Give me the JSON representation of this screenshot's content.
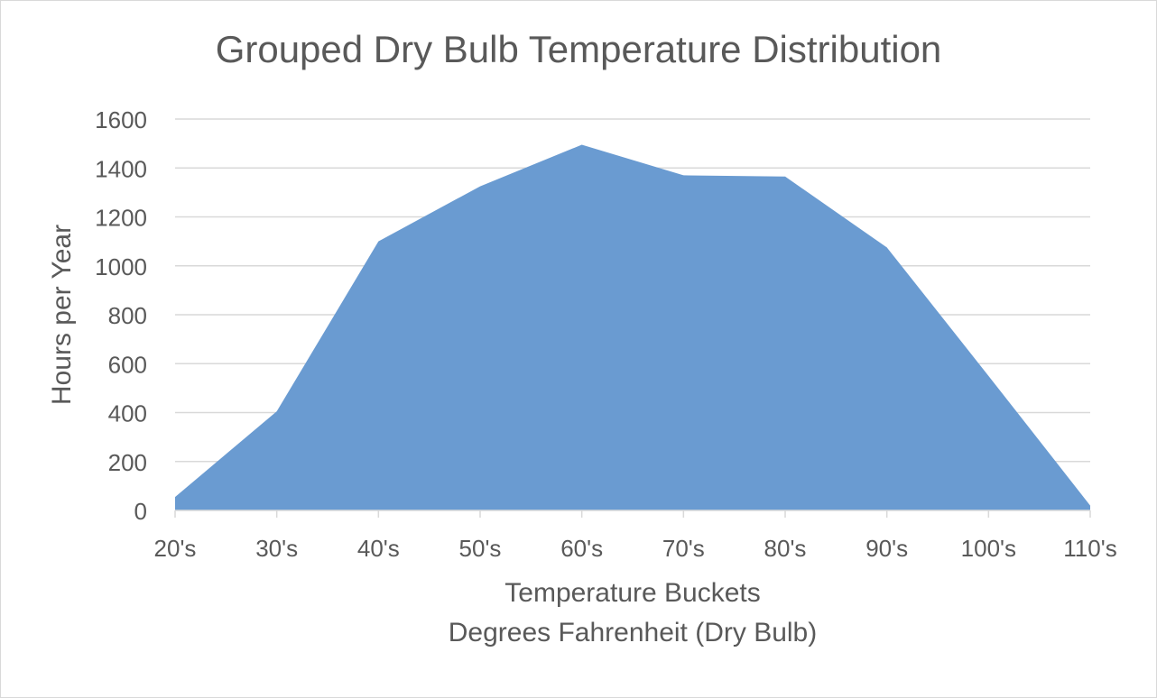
{
  "chart_data": {
    "type": "area",
    "title": "Grouped Dry Bulb Temperature Distribution",
    "xlabel": [
      "Temperature Buckets",
      "Degrees Fahrenheit (Dry Bulb)"
    ],
    "ylabel": "Hours per Year",
    "categories": [
      "20's",
      "30's",
      "40's",
      "50's",
      "60's",
      "70's",
      "80's",
      "90's",
      "100's",
      "110's"
    ],
    "series": [
      {
        "values": [
          55,
          405,
          1100,
          1325,
          1495,
          1370,
          1365,
          1075,
          550,
          20
        ]
      }
    ],
    "ylim": [
      0,
      1600
    ],
    "yticks": [
      "0",
      "200",
      "400",
      "600",
      "800",
      "1000",
      "1200",
      "1400",
      "1600"
    ],
    "grid": true,
    "legend": "none",
    "colors": {
      "area": "#6a9bd1",
      "grid": "#d9d9d9",
      "text": "#595959"
    }
  }
}
